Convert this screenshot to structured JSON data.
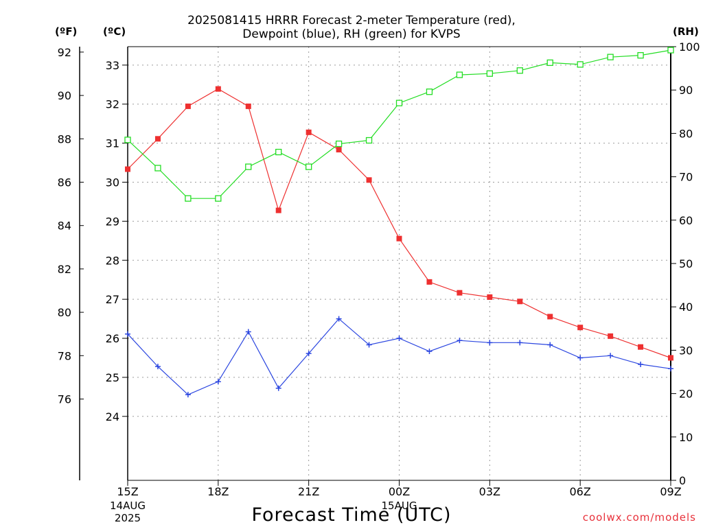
{
  "title_line1": "2025081415 HRRR Forecast 2-meter Temperature (red),",
  "title_line2": "Dewpoint (blue), RH (green) for KVPS",
  "unit_f": "(ºF)",
  "unit_c": "(ºC)",
  "unit_rh": "(RH)",
  "xlabel": "Forecast Time (UTC)",
  "credit": "coolwx.com/models",
  "colors": {
    "temperature": "#ee3030",
    "dewpoint": "#2b46e0",
    "rh": "#22dd22"
  },
  "chart_data": {
    "type": "line",
    "x_hours": [
      0,
      1,
      2,
      3,
      4,
      5,
      6,
      7,
      8,
      9,
      10,
      11,
      12,
      13,
      14,
      15,
      16,
      17,
      18
    ],
    "x_ticks": [
      {
        "hour": 0,
        "label": "15Z",
        "sub": [
          "14AUG",
          "2025"
        ]
      },
      {
        "hour": 3,
        "label": "18Z",
        "sub": []
      },
      {
        "hour": 6,
        "label": "21Z",
        "sub": []
      },
      {
        "hour": 9,
        "label": "00Z",
        "sub": [
          "15AUG"
        ]
      },
      {
        "hour": 12,
        "label": "03Z",
        "sub": []
      },
      {
        "hour": 15,
        "label": "06Z",
        "sub": []
      },
      {
        "hour": 18,
        "label": "09Z",
        "sub": []
      }
    ],
    "y_left_f": {
      "range": [
        72.25,
        92.25
      ],
      "ticks": [
        76,
        78,
        80,
        82,
        84,
        86,
        88,
        90,
        92
      ]
    },
    "y_left_c": {
      "ticks": [
        24,
        25,
        26,
        27,
        28,
        29,
        30,
        31,
        32,
        33
      ]
    },
    "y_right_rh": {
      "range": [
        0,
        100
      ],
      "ticks": [
        0,
        10,
        20,
        30,
        40,
        50,
        60,
        70,
        80,
        90,
        100
      ]
    },
    "grid": true,
    "series": [
      {
        "name": "Temperature",
        "axis": "F",
        "marker": "filled-square",
        "values": [
          86.6,
          88.0,
          89.5,
          90.3,
          89.5,
          84.7,
          88.3,
          87.5,
          86.1,
          83.4,
          81.4,
          80.9,
          80.7,
          80.5,
          79.8,
          79.3,
          78.9,
          78.4,
          77.9
        ]
      },
      {
        "name": "Dewpoint",
        "axis": "F",
        "marker": "plus",
        "values": [
          79.0,
          77.5,
          76.2,
          76.8,
          79.1,
          76.5,
          78.1,
          79.7,
          78.5,
          78.8,
          78.2,
          78.7,
          78.6,
          78.6,
          78.5,
          77.9,
          78.0,
          77.6,
          77.4
        ]
      },
      {
        "name": "RH",
        "axis": "RH",
        "marker": "open-square",
        "values": [
          78.5,
          72,
          65,
          65,
          72.3,
          75.7,
          72.3,
          77.6,
          78.4,
          87,
          89.6,
          93.5,
          93.8,
          94.5,
          96.3,
          95.9,
          97.6,
          98,
          99.2
        ]
      }
    ]
  }
}
